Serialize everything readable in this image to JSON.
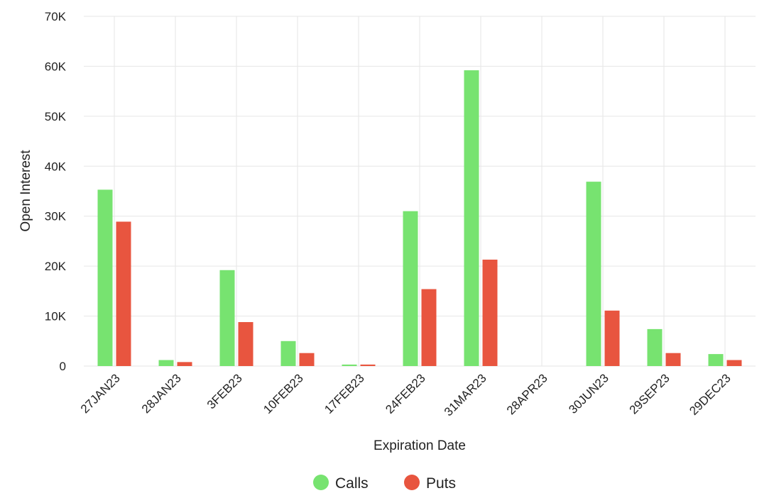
{
  "chart_data": {
    "type": "bar",
    "xlabel": "Expiration Date",
    "ylabel": "Open Interest",
    "ylim": [
      0,
      70000
    ],
    "yticks": [
      0,
      10000,
      20000,
      30000,
      40000,
      50000,
      60000,
      70000
    ],
    "ytick_labels": [
      "0",
      "10K",
      "20K",
      "30K",
      "40K",
      "50K",
      "60K",
      "70K"
    ],
    "categories": [
      "27JAN23",
      "28JAN23",
      "3FEB23",
      "10FEB23",
      "17FEB23",
      "24FEB23",
      "31MAR23",
      "28APR23",
      "30JUN23",
      "29SEP23",
      "29DEC23"
    ],
    "series": [
      {
        "name": "Calls",
        "color": "#77e370",
        "values": [
          35300,
          1200,
          19200,
          5000,
          300,
          31000,
          59200,
          0,
          36900,
          7400,
          2400
        ]
      },
      {
        "name": "Puts",
        "color": "#e8553f",
        "values": [
          28900,
          800,
          8800,
          2600,
          300,
          15400,
          21300,
          0,
          11100,
          2600,
          1200
        ]
      }
    ],
    "grid": true,
    "legend_position": "bottom-center"
  }
}
